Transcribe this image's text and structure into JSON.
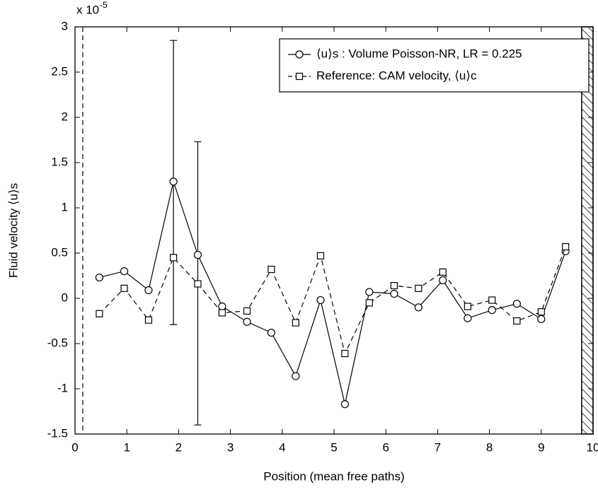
{
  "chart_data": {
    "type": "line",
    "xlabel": "Position (mean free paths)",
    "ylabel": "Fluid velocity ⟨u⟩s",
    "y_multiplier": "x 10",
    "y_multiplier_exponent": "-5",
    "x": [
      0.47,
      0.95,
      1.42,
      1.9,
      2.37,
      2.84,
      3.32,
      3.79,
      4.26,
      4.74,
      5.21,
      5.68,
      6.16,
      6.63,
      7.1,
      7.58,
      8.05,
      8.53,
      9.0,
      9.47
    ],
    "series": [
      {
        "name": "⟨u⟩s : Volume Poisson-NR, LR = 0.225",
        "color": "#000000",
        "marker": "circle",
        "dash": false,
        "values": [
          0.23,
          0.3,
          0.09,
          1.29,
          0.48,
          -0.09,
          -0.26,
          -0.38,
          -0.86,
          -0.02,
          -1.17,
          0.07,
          0.05,
          -0.1,
          0.2,
          -0.22,
          -0.13,
          -0.06,
          -0.23,
          0.52
        ],
        "errors_minus": [
          null,
          null,
          null,
          1.58,
          1.88,
          null,
          null,
          null,
          null,
          null,
          null,
          null,
          null,
          null,
          null,
          null,
          null,
          null,
          null,
          null
        ],
        "errors_plus": [
          null,
          null,
          null,
          1.56,
          1.25,
          null,
          null,
          null,
          null,
          null,
          null,
          null,
          null,
          null,
          null,
          null,
          null,
          null,
          null,
          null
        ]
      },
      {
        "name": "Reference: CAM velocity, ⟨u⟩c",
        "color": "#000000",
        "marker": "square",
        "dash": true,
        "values": [
          -0.17,
          0.11,
          -0.24,
          0.45,
          0.16,
          -0.16,
          -0.14,
          0.32,
          -0.27,
          0.47,
          -0.61,
          -0.05,
          0.14,
          0.11,
          0.29,
          -0.09,
          -0.02,
          -0.25,
          -0.15,
          0.57
        ]
      }
    ],
    "boundary_x": 0.15,
    "wall_x": 9.78,
    "xlim": [
      0,
      10
    ],
    "xticks": [
      0,
      1,
      2,
      3,
      4,
      5,
      6,
      7,
      8,
      9,
      10
    ],
    "ylim": [
      -1.5,
      3
    ],
    "yticks": [
      -1.5,
      -1,
      -0.5,
      0,
      0.5,
      1,
      1.5,
      2,
      2.5,
      3
    ],
    "grid": false,
    "legend": "upper right"
  }
}
